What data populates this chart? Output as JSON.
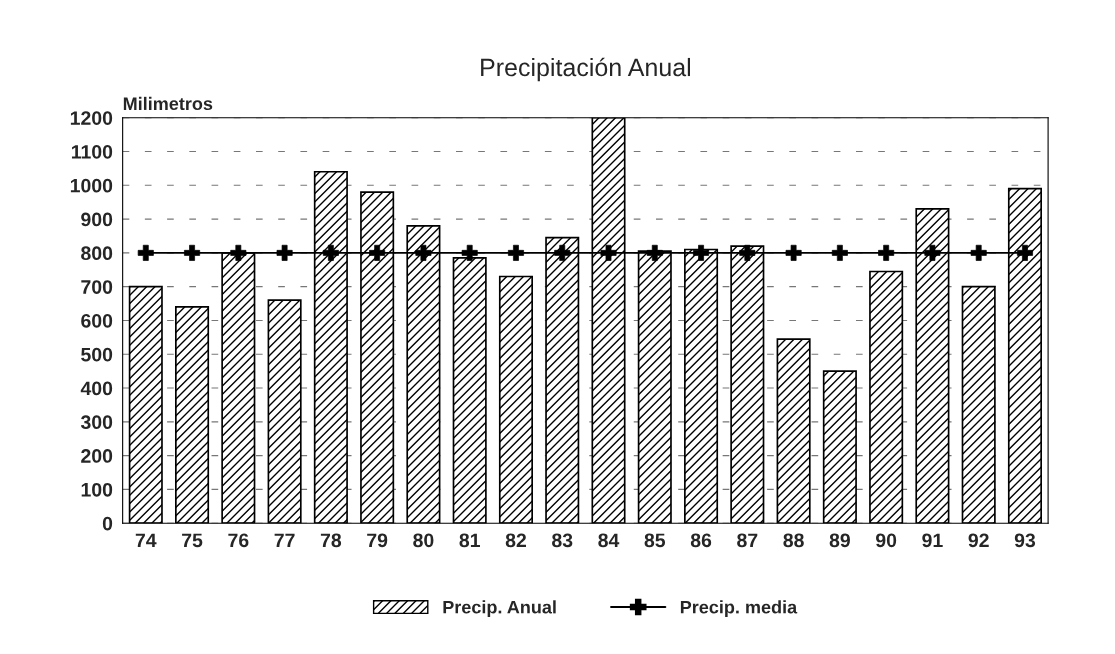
{
  "chart_data": {
    "type": "bar",
    "title": "Precipitación Anual",
    "ylabel": "Milimetros",
    "categories": [
      "74",
      "75",
      "76",
      "77",
      "78",
      "79",
      "80",
      "81",
      "82",
      "83",
      "84",
      "85",
      "86",
      "87",
      "88",
      "89",
      "90",
      "91",
      "92",
      "93"
    ],
    "series": [
      {
        "name": "Precip. Anual",
        "color": "#000000",
        "values": [
          700,
          640,
          800,
          660,
          1040,
          980,
          880,
          785,
          730,
          845,
          1200,
          805,
          810,
          820,
          545,
          450,
          745,
          930,
          700,
          990
        ]
      },
      {
        "name": "Precip. media",
        "type": "line",
        "color": "#000000",
        "marker": "cross",
        "values": [
          800,
          800,
          800,
          800,
          800,
          800,
          800,
          800,
          800,
          800,
          800,
          800,
          800,
          800,
          800,
          800,
          800,
          800,
          800,
          800
        ]
      }
    ],
    "ylim": [
      0,
      1200
    ],
    "yticks": [
      0,
      100,
      200,
      300,
      400,
      500,
      600,
      700,
      800,
      900,
      1000,
      1100,
      1200
    ],
    "grid": "y",
    "legend": "bottom"
  }
}
